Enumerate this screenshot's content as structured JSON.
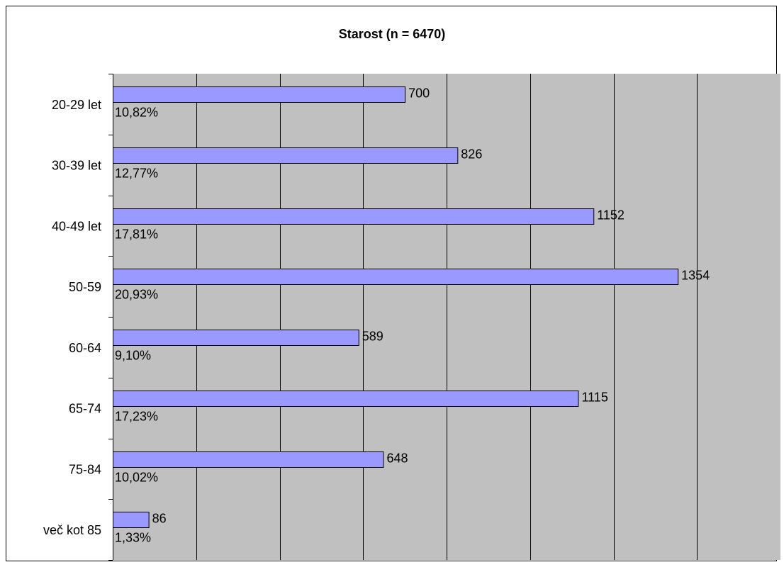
{
  "chart_data": {
    "type": "bar",
    "orientation": "horizontal",
    "title": "Starost (n = 6470)",
    "categories": [
      "20-29 let",
      "30-39 let",
      "40-49 let",
      "50-59",
      "60-64",
      "65-74",
      "75-84",
      "več kot 85"
    ],
    "values": [
      700,
      826,
      1152,
      1354,
      589,
      1115,
      648,
      86
    ],
    "percent_labels": [
      "10,82%",
      "12,77%",
      "17,81%",
      "20,93%",
      "9,10%",
      "17,23%",
      "10,02%",
      "1,33%"
    ],
    "xlim": [
      0,
      1600
    ],
    "x_gridline_step": 200,
    "grid": true,
    "legend": "none",
    "xlabel": "",
    "ylabel": ""
  },
  "colors": {
    "plot_background": "#c0c0c0",
    "bar_fill": "#9999ff",
    "bar_stroke": "#000000",
    "gridline": "#000000"
  }
}
